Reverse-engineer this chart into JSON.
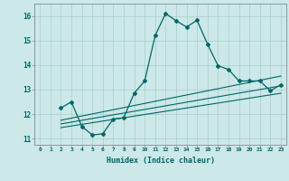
{
  "xlabel": "Humidex (Indice chaleur)",
  "bg_color": "#cce8e8",
  "grid_color": "#aacccc",
  "line_color": "#006666",
  "xlim": [
    -0.5,
    23.5
  ],
  "ylim": [
    10.75,
    16.5
  ],
  "yticks": [
    11,
    12,
    13,
    14,
    15,
    16
  ],
  "xticks": [
    0,
    1,
    2,
    3,
    4,
    5,
    6,
    7,
    8,
    9,
    10,
    11,
    12,
    13,
    14,
    15,
    16,
    17,
    18,
    19,
    20,
    21,
    22,
    23
  ],
  "series1_x": [
    2,
    3,
    4,
    5,
    6,
    7,
    8,
    9,
    10,
    11,
    12,
    13,
    14,
    15,
    16,
    17,
    18,
    19,
    20,
    21,
    22,
    23
  ],
  "series1_y": [
    12.25,
    12.5,
    11.5,
    11.15,
    11.2,
    11.8,
    11.85,
    12.85,
    13.35,
    15.2,
    16.1,
    15.8,
    15.55,
    15.82,
    14.85,
    13.97,
    13.82,
    13.35,
    13.35,
    13.35,
    12.95,
    13.2
  ],
  "series2_x": [
    2,
    23
  ],
  "series2_y": [
    11.75,
    13.55
  ],
  "series3_x": [
    2,
    23
  ],
  "series3_y": [
    11.6,
    13.15
  ],
  "series4_x": [
    2,
    23
  ],
  "series4_y": [
    11.45,
    12.85
  ]
}
